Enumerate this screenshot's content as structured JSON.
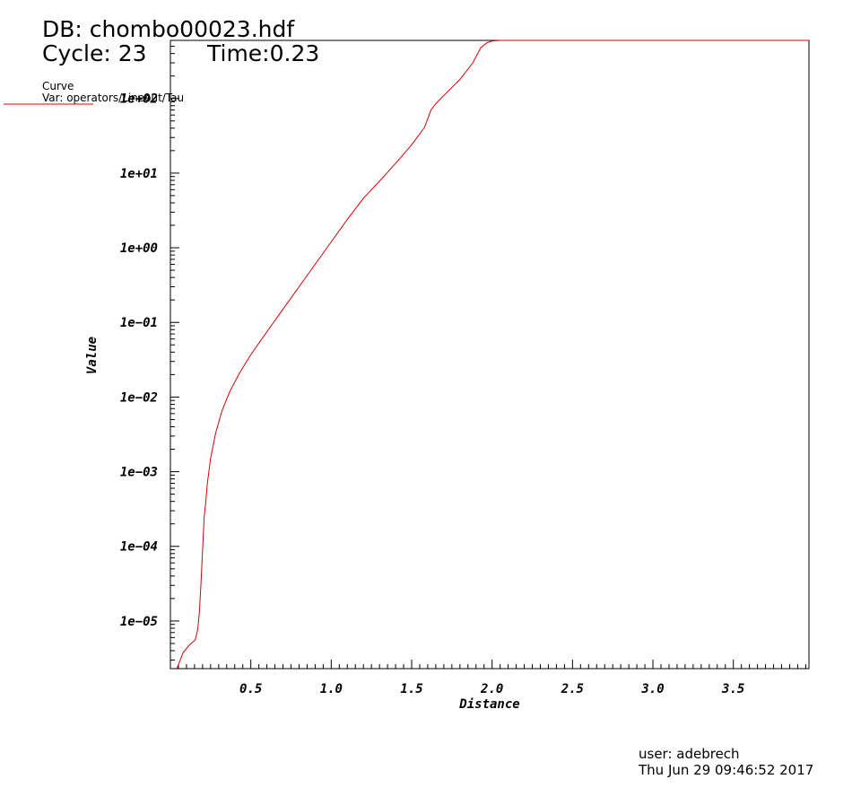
{
  "header": {
    "db_label": "DB: chombo00023.hdf",
    "cycle_label": "Cycle: 23",
    "time_label": "Time:0.23"
  },
  "legend": {
    "title": "Curve",
    "var": "Var: operators/Lineout/Tau",
    "line_color": "#dd0000"
  },
  "footer": {
    "user": "user: adebrech",
    "date": "Thu Jun 29 09:46:52 2017"
  },
  "chart_data": {
    "type": "line",
    "xlabel": "Distance",
    "ylabel": "Value",
    "xscale": "linear",
    "yscale": "log",
    "xlim": [
      0.0,
      3.97
    ],
    "ylim": [
      2.3e-06,
      600
    ],
    "x_ticks": [
      {
        "v": 0.5,
        "label": "0.5"
      },
      {
        "v": 1.0,
        "label": "1.0"
      },
      {
        "v": 1.5,
        "label": "1.5"
      },
      {
        "v": 2.0,
        "label": "2.0"
      },
      {
        "v": 2.5,
        "label": "2.5"
      },
      {
        "v": 3.0,
        "label": "3.0"
      },
      {
        "v": 3.5,
        "label": "3.5"
      }
    ],
    "y_ticks": [
      {
        "v": 1e-05,
        "label": "1e−05"
      },
      {
        "v": 0.0001,
        "label": "1e−04"
      },
      {
        "v": 0.001,
        "label": "1e−03"
      },
      {
        "v": 0.01,
        "label": "1e−02"
      },
      {
        "v": 0.1,
        "label": "1e−01"
      },
      {
        "v": 1.0,
        "label": "1e+00"
      },
      {
        "v": 10.0,
        "label": "1e+01"
      },
      {
        "v": 100.0,
        "label": "1e+02"
      }
    ],
    "grid": false,
    "series": [
      {
        "color": "#dd0000",
        "x": [
          0.04,
          0.08,
          0.12,
          0.155,
          0.17,
          0.18,
          0.19,
          0.2,
          0.21,
          0.22,
          0.23,
          0.25,
          0.28,
          0.32,
          0.37,
          0.43,
          0.5,
          0.6,
          0.7,
          0.8,
          0.9,
          1.0,
          1.1,
          1.2,
          1.3,
          1.4,
          1.5,
          1.58,
          1.62,
          1.65,
          1.7,
          1.8,
          1.88,
          1.93,
          1.97,
          2.0,
          2.05,
          2.1,
          2.15,
          2.2,
          2.3,
          2.5,
          3.0,
          3.5,
          3.97
        ],
        "y": [
          2.3e-06,
          3.8e-06,
          4.8e-06,
          5.6e-06,
          7.8e-06,
          1.3e-05,
          3.2e-05,
          9e-05,
          0.00025,
          0.0004,
          0.0007,
          0.0015,
          0.0032,
          0.0065,
          0.012,
          0.021,
          0.037,
          0.075,
          0.15,
          0.3,
          0.6,
          1.2,
          2.4,
          4.6,
          7.8,
          13.5,
          24,
          41,
          70,
          85,
          110,
          180,
          300,
          480,
          560,
          590,
          600,
          600,
          600,
          600,
          600,
          600,
          600,
          600,
          600
        ]
      }
    ]
  }
}
